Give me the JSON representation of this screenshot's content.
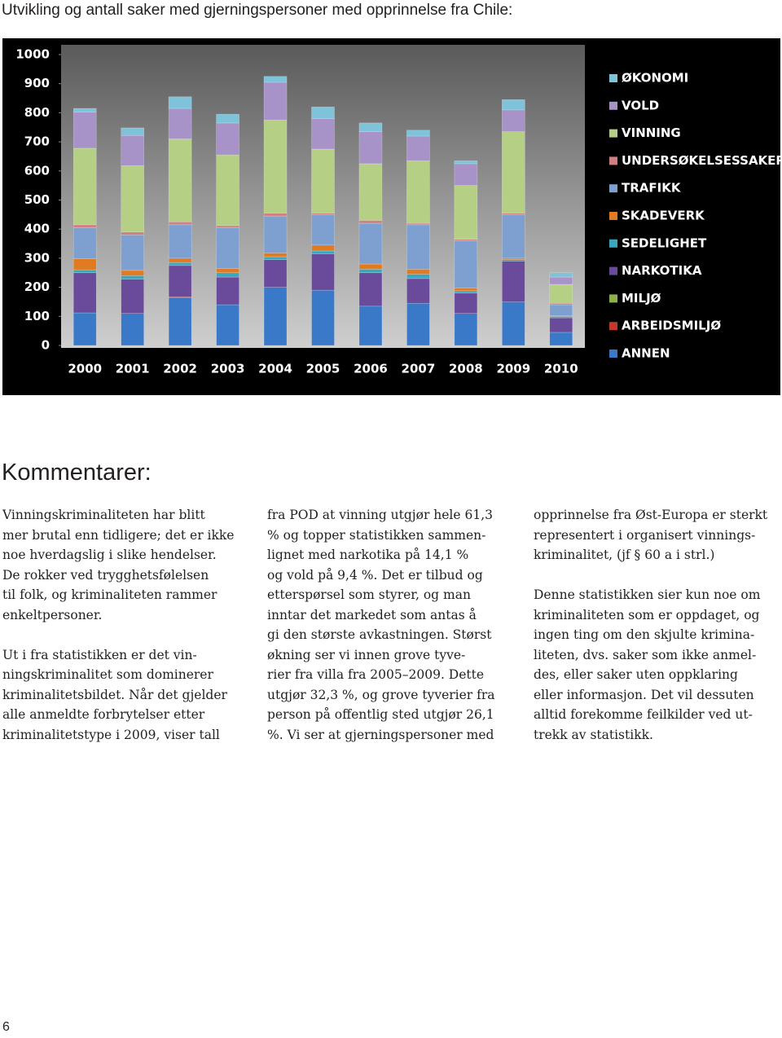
{
  "header": {
    "title": "Utvikling og antall saker med gjerningspersoner med opprinnelse fra Chile:"
  },
  "chart_data": {
    "type": "stacked_bar",
    "categories": [
      "2000",
      "2001",
      "2002",
      "2003",
      "2004",
      "2005",
      "2006",
      "2007",
      "2008",
      "2009",
      "2010"
    ],
    "ylim": [
      0,
      1000
    ],
    "yticks": [
      0,
      100,
      200,
      300,
      400,
      500,
      600,
      700,
      800,
      900,
      1000
    ],
    "series": [
      {
        "name": "ANNEN",
        "color": "#3a78c8",
        "values": [
          112,
          110,
          165,
          140,
          200,
          190,
          135,
          145,
          110,
          150,
          45
        ]
      },
      {
        "name": "ARBEIDSMILJØ",
        "color": "#c0392b",
        "values": [
          0,
          0,
          2,
          0,
          0,
          0,
          0,
          0,
          0,
          0,
          0
        ]
      },
      {
        "name": "MILJØ",
        "color": "#8db04a",
        "values": [
          0,
          0,
          0,
          0,
          0,
          0,
          0,
          0,
          0,
          0,
          0
        ]
      },
      {
        "name": "NARKOTIKA",
        "color": "#6a4a9a",
        "values": [
          138,
          118,
          108,
          95,
          95,
          125,
          115,
          85,
          70,
          140,
          50
        ]
      },
      {
        "name": "SEDELIGHET",
        "color": "#3aa7c0",
        "values": [
          10,
          12,
          10,
          15,
          10,
          10,
          12,
          15,
          8,
          5,
          5
        ]
      },
      {
        "name": "SKADEVERK",
        "color": "#e07b22",
        "values": [
          38,
          18,
          15,
          15,
          13,
          20,
          18,
          17,
          10,
          5,
          2
        ]
      },
      {
        "name": "TRAFIKK",
        "color": "#7ea0d0",
        "values": [
          107,
          122,
          115,
          140,
          127,
          105,
          140,
          153,
          162,
          150,
          38
        ]
      },
      {
        "name": "UNDERSØKELSESSAKER",
        "color": "#d08080",
        "values": [
          10,
          10,
          10,
          7,
          10,
          5,
          10,
          5,
          5,
          5,
          5
        ]
      },
      {
        "name": "VINNING",
        "color": "#b5cf85",
        "values": [
          263,
          228,
          285,
          243,
          320,
          220,
          195,
          215,
          185,
          280,
          65
        ]
      },
      {
        "name": "VOLD",
        "color": "#a893c9",
        "values": [
          124,
          104,
          105,
          110,
          130,
          105,
          110,
          85,
          75,
          75,
          25
        ]
      },
      {
        "name": "ØKONOMI",
        "color": "#7fc3da",
        "values": [
          13,
          26,
          40,
          30,
          20,
          40,
          30,
          20,
          10,
          35,
          15
        ]
      }
    ]
  },
  "comments": {
    "title": "Kommentarer:",
    "columns": [
      [
        [
          "Vinningskriminaliteten har blitt",
          "mer brutal enn tidligere; det er ikke",
          "noe hverdagslig i slike hendelser.",
          "De rokker ved trygghetsfølelsen",
          "til folk, og kriminaliteten rammer",
          "enkeltpersoner."
        ],
        [
          "Ut i fra statistikken er det vin-",
          "ningskriminalitet som dominerer",
          "kriminalitetsbildet. Når det gjelder",
          "alle anmeldte forbrytelser etter",
          "kriminalitetstype i 2009, viser tall"
        ]
      ],
      [
        [
          "fra POD at vinning utgjør hele 61,3",
          "% og topper statistikken sammen-",
          "lignet med narkotika på 14,1 %",
          "og vold på 9,4 %. Det er tilbud og",
          "etterspørsel som styrer, og man",
          "inntar det markedet som antas å",
          "gi den største avkastningen. Størst",
          "økning ser vi innen grove tyve-",
          "rier fra villa fra 2005–2009. Dette",
          "utgjør 32,3 %, og grove tyverier fra",
          "person på offentlig sted utgjør 26,1",
          "%. Vi ser at gjerningspersoner med"
        ]
      ],
      [
        [
          "opprinnelse fra Øst-Europa er sterkt",
          "representert i organisert vinnings-",
          "kriminalitet, (jf § 60 a i strl.)"
        ],
        [
          "Denne statistikken sier kun noe om",
          "kriminaliteten som er oppdaget, og",
          "ingen ting om den skjulte krimina-",
          "liteten, dvs. saker som ikke anmel-",
          "des, eller saker uten oppklaring",
          "eller informasjon. Det vil dessuten",
          "alltid forekomme feilkilder ved ut-",
          "trekk av statistikk."
        ]
      ]
    ]
  },
  "page_number": "6"
}
